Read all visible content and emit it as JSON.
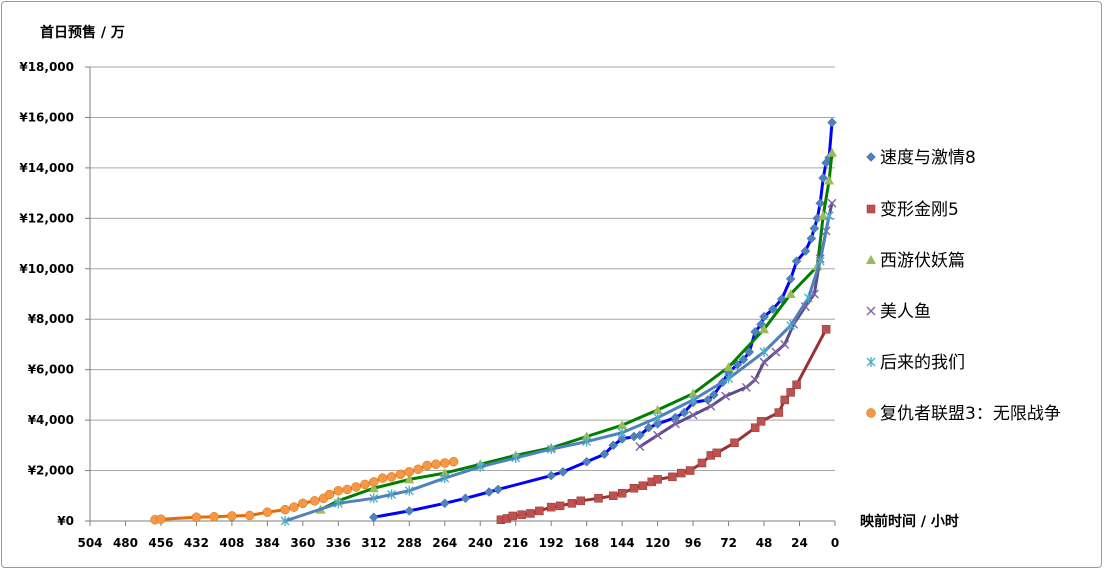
{
  "chart_data": {
    "type": "line",
    "ylabel": "首日预售 / 万",
    "xlabel": "映前时间 / 小时",
    "x_reversed": true,
    "xlim": [
      504,
      0
    ],
    "ylim": [
      0,
      18000
    ],
    "xticks": [
      "504",
      "480",
      "456",
      "432",
      "408",
      "384",
      "360",
      "336",
      "312",
      "288",
      "264",
      "240",
      "216",
      "192",
      "168",
      "144",
      "120",
      "96",
      "72",
      "48",
      "24",
      "0"
    ],
    "yticks": [
      "¥0",
      "¥2,000",
      "¥4,000",
      "¥6,000",
      "¥8,000",
      "¥10,000",
      "¥12,000",
      "¥14,000",
      "¥16,000",
      "¥18,000"
    ],
    "grid": "horizontal",
    "legend_position": "right",
    "series": [
      {
        "name": "速度与激情8",
        "color": "#0000ff",
        "marker": "diamond",
        "marker_color": "#4f81bd",
        "points": [
          [
            312,
            150
          ],
          [
            288,
            400
          ],
          [
            264,
            700
          ],
          [
            250,
            900
          ],
          [
            234,
            1150
          ],
          [
            228,
            1250
          ],
          [
            192,
            1800
          ],
          [
            184,
            1950
          ],
          [
            168,
            2350
          ],
          [
            156,
            2650
          ],
          [
            150,
            3000
          ],
          [
            144,
            3250
          ],
          [
            136,
            3350
          ],
          [
            132,
            3400
          ],
          [
            126,
            3700
          ],
          [
            120,
            3850
          ],
          [
            108,
            4100
          ],
          [
            102,
            4300
          ],
          [
            96,
            4700
          ],
          [
            86,
            4800
          ],
          [
            82,
            5000
          ],
          [
            76,
            5500
          ],
          [
            72,
            5900
          ],
          [
            66,
            6200
          ],
          [
            62,
            6400
          ],
          [
            58,
            6700
          ],
          [
            54,
            7500
          ],
          [
            50,
            7800
          ],
          [
            48,
            8100
          ],
          [
            42,
            8400
          ],
          [
            36,
            8800
          ],
          [
            30,
            9600
          ],
          [
            26,
            10300
          ],
          [
            20,
            10700
          ],
          [
            16,
            11200
          ],
          [
            14,
            11600
          ],
          [
            12,
            12000
          ],
          [
            10,
            12600
          ],
          [
            8,
            13600
          ],
          [
            6,
            14200
          ],
          [
            4,
            14400
          ],
          [
            2,
            15800
          ]
        ]
      },
      {
        "name": "变形金刚5",
        "color": "#993333",
        "marker": "square",
        "marker_color": "#c0504d",
        "points": [
          [
            226,
            50
          ],
          [
            222,
            100
          ],
          [
            218,
            200
          ],
          [
            212,
            250
          ],
          [
            206,
            300
          ],
          [
            200,
            400
          ],
          [
            192,
            550
          ],
          [
            186,
            600
          ],
          [
            178,
            700
          ],
          [
            172,
            800
          ],
          [
            160,
            900
          ],
          [
            150,
            1000
          ],
          [
            144,
            1100
          ],
          [
            136,
            1300
          ],
          [
            130,
            1400
          ],
          [
            124,
            1550
          ],
          [
            120,
            1650
          ],
          [
            110,
            1750
          ],
          [
            104,
            1900
          ],
          [
            98,
            2000
          ],
          [
            90,
            2300
          ],
          [
            84,
            2600
          ],
          [
            80,
            2700
          ],
          [
            68,
            3100
          ],
          [
            54,
            3700
          ],
          [
            50,
            3950
          ],
          [
            38,
            4300
          ],
          [
            34,
            4800
          ],
          [
            30,
            5100
          ],
          [
            26,
            5400
          ],
          [
            6,
            7600
          ]
        ]
      },
      {
        "name": "西游伏妖篇",
        "color": "#008000",
        "marker": "triangle",
        "marker_color": "#9bbb59",
        "points": [
          [
            348,
            450
          ],
          [
            336,
            800
          ],
          [
            312,
            1300
          ],
          [
            288,
            1650
          ],
          [
            264,
            1900
          ],
          [
            240,
            2250
          ],
          [
            216,
            2600
          ],
          [
            192,
            2900
          ],
          [
            168,
            3350
          ],
          [
            144,
            3800
          ],
          [
            120,
            4400
          ],
          [
            96,
            5050
          ],
          [
            72,
            6100
          ],
          [
            48,
            7600
          ],
          [
            30,
            9000
          ],
          [
            12,
            10100
          ],
          [
            8,
            12100
          ],
          [
            4,
            13500
          ],
          [
            2,
            14600
          ]
        ]
      },
      {
        "name": "美人鱼",
        "color": "#5f4b8b",
        "marker": "x",
        "marker_color": "#8064a2",
        "points": [
          [
            132,
            2950
          ],
          [
            120,
            3400
          ],
          [
            108,
            3850
          ],
          [
            96,
            4200
          ],
          [
            84,
            4550
          ],
          [
            74,
            4950
          ],
          [
            60,
            5300
          ],
          [
            54,
            5600
          ],
          [
            48,
            6300
          ],
          [
            40,
            6700
          ],
          [
            34,
            7000
          ],
          [
            28,
            7800
          ],
          [
            20,
            8500
          ],
          [
            14,
            9000
          ],
          [
            10,
            10400
          ],
          [
            6,
            11500
          ],
          [
            4,
            12100
          ],
          [
            2,
            12600
          ]
        ]
      },
      {
        "name": "后来的我们",
        "color": "#4f81bd",
        "marker": "asterisk",
        "marker_color": "#4bacc6",
        "points": [
          [
            372,
            0
          ],
          [
            336,
            700
          ],
          [
            312,
            900
          ],
          [
            300,
            1050
          ],
          [
            288,
            1200
          ],
          [
            264,
            1700
          ],
          [
            240,
            2150
          ],
          [
            216,
            2500
          ],
          [
            192,
            2850
          ],
          [
            168,
            3150
          ],
          [
            144,
            3500
          ],
          [
            120,
            4100
          ],
          [
            96,
            4800
          ],
          [
            72,
            5650
          ],
          [
            48,
            6700
          ],
          [
            30,
            7750
          ],
          [
            18,
            8850
          ],
          [
            10,
            10300
          ],
          [
            4,
            12100
          ]
        ]
      },
      {
        "name": "复仇者联盟3：无限战争",
        "color": "#e36c09",
        "marker": "circle",
        "marker_color": "#f79646",
        "points": [
          [
            460,
            50
          ],
          [
            456,
            70
          ],
          [
            432,
            150
          ],
          [
            420,
            170
          ],
          [
            408,
            200
          ],
          [
            396,
            220
          ],
          [
            384,
            350
          ],
          [
            372,
            450
          ],
          [
            366,
            550
          ],
          [
            360,
            700
          ],
          [
            352,
            800
          ],
          [
            346,
            900
          ],
          [
            342,
            1050
          ],
          [
            336,
            1200
          ],
          [
            330,
            1250
          ],
          [
            324,
            1350
          ],
          [
            318,
            1450
          ],
          [
            312,
            1550
          ],
          [
            306,
            1700
          ],
          [
            300,
            1750
          ],
          [
            294,
            1850
          ],
          [
            288,
            1950
          ],
          [
            282,
            2050
          ],
          [
            276,
            2200
          ],
          [
            270,
            2250
          ],
          [
            264,
            2300
          ],
          [
            258,
            2350
          ]
        ]
      }
    ]
  }
}
